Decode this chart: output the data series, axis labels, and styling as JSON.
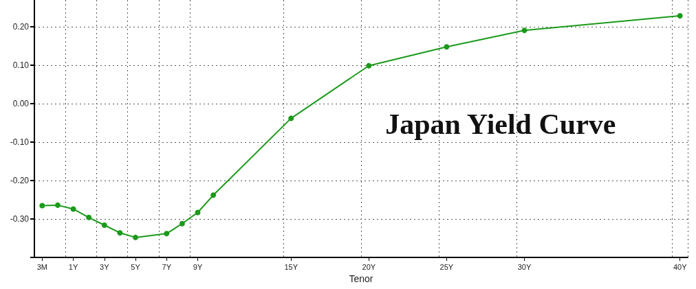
{
  "chart_data": {
    "type": "line",
    "title": "Japan Yield Curve",
    "xlabel": "Tenor",
    "categories": [
      "3M",
      null,
      "1Y",
      null,
      "3Y",
      null,
      "5Y",
      null,
      "7Y",
      null,
      "9Y",
      null,
      null,
      null,
      null,
      null,
      "15Y",
      null,
      null,
      null,
      null,
      "20Y",
      null,
      null,
      null,
      null,
      "25Y",
      null,
      null,
      null,
      null,
      "30Y",
      null,
      null,
      null,
      null,
      null,
      null,
      null,
      null,
      null,
      "40Y"
    ],
    "series": [
      {
        "color": "#1a9a1a",
        "values": [
          -0.265,
          -0.264,
          -0.274,
          -0.296,
          -0.316,
          -0.336,
          -0.348,
          null,
          -0.338,
          -0.312,
          -0.283,
          -0.238,
          null,
          null,
          null,
          null,
          -0.038,
          null,
          null,
          null,
          null,
          0.099,
          null,
          null,
          null,
          null,
          0.148,
          null,
          null,
          null,
          null,
          0.191,
          null,
          null,
          null,
          null,
          null,
          null,
          null,
          null,
          null,
          0.229
        ]
      }
    ],
    "ylim": [
      -0.4,
      0.27
    ],
    "yticks": [
      {
        "value": -0.4,
        "label": null
      },
      {
        "value": -0.3,
        "label": "-0.30"
      },
      {
        "value": -0.2,
        "label": "-0.20"
      },
      {
        "value": -0.1,
        "label": "-0.10"
      },
      {
        "value": 0,
        "label": "0.00"
      },
      {
        "value": 0.1,
        "label": "0.10"
      },
      {
        "value": 0.2,
        "label": "0.20"
      }
    ],
    "grid": true,
    "marker": "circle",
    "line_style": "solid"
  }
}
